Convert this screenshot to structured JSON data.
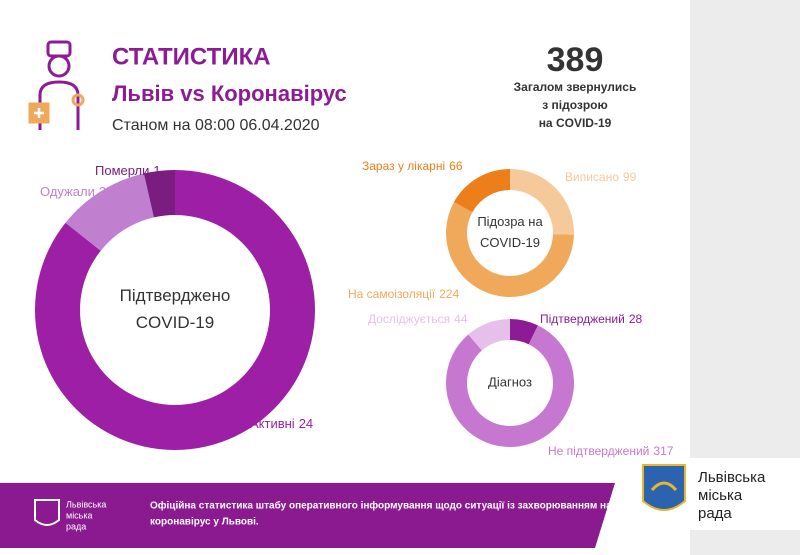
{
  "header": {
    "title": "СТАТИСТИКА",
    "subtitle": "Львів vs Коронавірус",
    "date": "Станом на 08:00 06.04.2020",
    "total": 389,
    "total_caption": [
      "Загалом звернулись",
      "з підозрою",
      "на COVID-19"
    ]
  },
  "chart_data": [
    {
      "type": "pie",
      "center_label": [
        "Підтверджено",
        "COVID-19"
      ],
      "categories": [
        "Активні",
        "Одужали",
        "Померли"
      ],
      "values": [
        24,
        3,
        1
      ],
      "colors": [
        "#9c1fa6",
        "#c17fcf",
        "#7a1c80"
      ]
    },
    {
      "type": "pie",
      "center_label": [
        "Підозра на",
        "COVID-19"
      ],
      "categories": [
        "Виписано",
        "На самоізоляції",
        "Зараз у лікарні"
      ],
      "values": [
        99,
        224,
        66
      ],
      "colors": [
        "#f6c99a",
        "#f0a95a",
        "#ec7f1a"
      ]
    },
    {
      "type": "pie",
      "center_label": [
        "Діагноз"
      ],
      "categories": [
        "Підтверджений",
        "Не підтверджений",
        "Досліджується"
      ],
      "values": [
        28,
        317,
        44
      ],
      "colors": [
        "#8e1b96",
        "#c678d1",
        "#e6c0ea"
      ]
    }
  ],
  "footer": {
    "text": [
      "Офіційна статистика штабу оперативного інформування щодо ситуації із захворюванням на",
      "коронавірус у Львові."
    ],
    "logo_small": [
      "Львівська",
      "міська",
      "рада"
    ],
    "logo_large": [
      "Львівська",
      "міська",
      "рада"
    ]
  }
}
